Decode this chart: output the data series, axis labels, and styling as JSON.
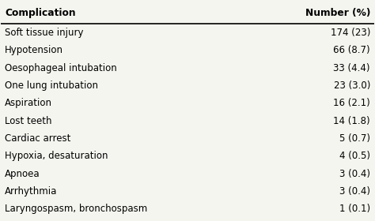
{
  "header_left": "Complication",
  "header_right": "Number (%)",
  "rows": [
    [
      "Soft tissue injury",
      "174 (23)"
    ],
    [
      "Hypotension",
      "66 (8.7)"
    ],
    [
      "Oesophageal intubation",
      "33 (4.4)"
    ],
    [
      "One lung intubation",
      "23 (3.0)"
    ],
    [
      "Aspiration",
      "16 (2.1)"
    ],
    [
      "Lost teeth",
      "14 (1.8)"
    ],
    [
      "Cardiac arrest",
      "5 (0.7)"
    ],
    [
      "Hypoxia, desaturation",
      "4 (0.5)"
    ],
    [
      "Apnoea",
      "3 (0.4)"
    ],
    [
      "Arrhythmia",
      "3 (0.4)"
    ],
    [
      "Laryngospasm, bronchospasm",
      "1 (0.1)"
    ]
  ],
  "bg_color": "#f5f5f0",
  "header_line_color": "#000000",
  "text_color": "#000000",
  "font_size": 8.5,
  "header_font_size": 8.8
}
